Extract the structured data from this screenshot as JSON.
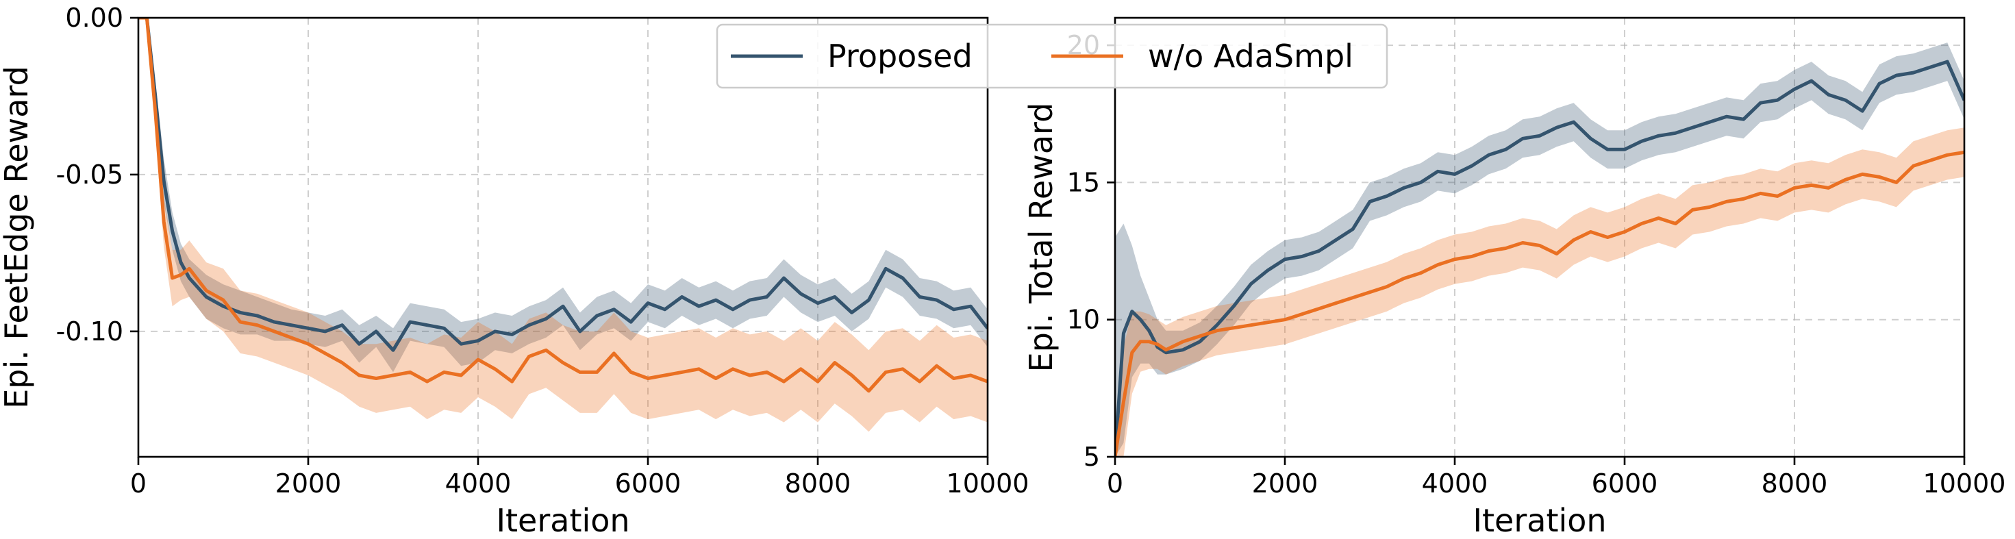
{
  "legend": {
    "entries": [
      {
        "name": "Proposed",
        "color": "#34546e"
      },
      {
        "name": "w/o AdaSmpl",
        "color": "#ea7022"
      }
    ]
  },
  "chart_data": [
    {
      "type": "line",
      "xlabel": "Iteration",
      "ylabel": "Epi. FeetEdge Reward",
      "xlim": [
        0,
        10000
      ],
      "ylim": [
        -0.14,
        0.0
      ],
      "xticks": [
        0,
        2000,
        4000,
        6000,
        8000,
        10000
      ],
      "yticks": [
        0.0,
        -0.05,
        -0.1
      ],
      "ytick_labels": [
        "0.00",
        "-0.05",
        "-0.10"
      ],
      "grid": true,
      "series": [
        {
          "name": "Proposed",
          "color": "#34546e",
          "x": [
            0,
            100,
            200,
            300,
            400,
            500,
            600,
            800,
            1000,
            1200,
            1400,
            1600,
            1800,
            2000,
            2200,
            2400,
            2600,
            2800,
            3000,
            3200,
            3400,
            3600,
            3800,
            4000,
            4200,
            4400,
            4600,
            4800,
            5000,
            5200,
            5400,
            5600,
            5800,
            6000,
            6200,
            6400,
            6600,
            6800,
            7000,
            7200,
            7400,
            7600,
            7800,
            8000,
            8200,
            8400,
            8600,
            8800,
            9000,
            9200,
            9400,
            9600,
            9800,
            10000
          ],
          "y": [
            0.0,
            0.0,
            -0.025,
            -0.052,
            -0.068,
            -0.078,
            -0.083,
            -0.089,
            -0.092,
            -0.094,
            -0.095,
            -0.097,
            -0.098,
            -0.099,
            -0.1,
            -0.098,
            -0.104,
            -0.1,
            -0.106,
            -0.097,
            -0.098,
            -0.099,
            -0.104,
            -0.103,
            -0.1,
            -0.101,
            -0.098,
            -0.096,
            -0.092,
            -0.1,
            -0.095,
            -0.093,
            -0.097,
            -0.091,
            -0.093,
            -0.089,
            -0.092,
            -0.09,
            -0.093,
            -0.09,
            -0.089,
            -0.083,
            -0.088,
            -0.091,
            -0.089,
            -0.094,
            -0.09,
            -0.08,
            -0.083,
            -0.089,
            -0.09,
            -0.093,
            -0.092,
            -0.099
          ],
          "upper": [
            0.0,
            0.0,
            -0.02,
            -0.045,
            -0.062,
            -0.072,
            -0.077,
            -0.082,
            -0.085,
            -0.087,
            -0.089,
            -0.091,
            -0.093,
            -0.094,
            -0.095,
            -0.093,
            -0.098,
            -0.095,
            -0.099,
            -0.091,
            -0.092,
            -0.093,
            -0.097,
            -0.096,
            -0.094,
            -0.095,
            -0.092,
            -0.09,
            -0.086,
            -0.094,
            -0.089,
            -0.087,
            -0.091,
            -0.085,
            -0.087,
            -0.083,
            -0.086,
            -0.084,
            -0.087,
            -0.084,
            -0.083,
            -0.077,
            -0.082,
            -0.085,
            -0.083,
            -0.088,
            -0.084,
            -0.074,
            -0.077,
            -0.083,
            -0.084,
            -0.087,
            -0.086,
            -0.093
          ],
          "lower": [
            0.0,
            0.0,
            -0.03,
            -0.059,
            -0.074,
            -0.084,
            -0.089,
            -0.096,
            -0.099,
            -0.101,
            -0.101,
            -0.103,
            -0.103,
            -0.104,
            -0.105,
            -0.103,
            -0.11,
            -0.105,
            -0.113,
            -0.103,
            -0.104,
            -0.105,
            -0.111,
            -0.11,
            -0.106,
            -0.107,
            -0.104,
            -0.102,
            -0.098,
            -0.106,
            -0.101,
            -0.099,
            -0.103,
            -0.097,
            -0.099,
            -0.095,
            -0.098,
            -0.096,
            -0.099,
            -0.096,
            -0.095,
            -0.089,
            -0.094,
            -0.097,
            -0.095,
            -0.1,
            -0.096,
            -0.086,
            -0.089,
            -0.095,
            -0.096,
            -0.099,
            -0.098,
            -0.105
          ]
        },
        {
          "name": "w/o AdaSmpl",
          "color": "#ea7022",
          "x": [
            0,
            100,
            200,
            300,
            400,
            500,
            600,
            800,
            1000,
            1200,
            1400,
            1600,
            1800,
            2000,
            2200,
            2400,
            2600,
            2800,
            3000,
            3200,
            3400,
            3600,
            3800,
            4000,
            4200,
            4400,
            4600,
            4800,
            5000,
            5200,
            5400,
            5600,
            5800,
            6000,
            6200,
            6400,
            6600,
            6800,
            7000,
            7200,
            7400,
            7600,
            7800,
            8000,
            8200,
            8400,
            8600,
            8800,
            9000,
            9200,
            9400,
            9600,
            9800,
            10000
          ],
          "y": [
            0.0,
            0.0,
            -0.03,
            -0.065,
            -0.083,
            -0.082,
            -0.08,
            -0.087,
            -0.09,
            -0.097,
            -0.098,
            -0.1,
            -0.102,
            -0.104,
            -0.107,
            -0.11,
            -0.114,
            -0.115,
            -0.114,
            -0.113,
            -0.116,
            -0.113,
            -0.114,
            -0.109,
            -0.112,
            -0.116,
            -0.108,
            -0.106,
            -0.11,
            -0.113,
            -0.113,
            -0.107,
            -0.113,
            -0.115,
            -0.114,
            -0.113,
            -0.112,
            -0.115,
            -0.112,
            -0.114,
            -0.113,
            -0.116,
            -0.112,
            -0.116,
            -0.11,
            -0.114,
            -0.119,
            -0.113,
            -0.112,
            -0.116,
            -0.111,
            -0.115,
            -0.114,
            -0.116
          ],
          "upper": [
            0.0,
            0.0,
            -0.024,
            -0.057,
            -0.074,
            -0.074,
            -0.071,
            -0.078,
            -0.08,
            -0.087,
            -0.088,
            -0.09,
            -0.092,
            -0.094,
            -0.097,
            -0.1,
            -0.104,
            -0.104,
            -0.103,
            -0.102,
            -0.104,
            -0.101,
            -0.102,
            -0.097,
            -0.1,
            -0.104,
            -0.096,
            -0.094,
            -0.098,
            -0.1,
            -0.1,
            -0.094,
            -0.1,
            -0.102,
            -0.101,
            -0.1,
            -0.099,
            -0.102,
            -0.099,
            -0.101,
            -0.1,
            -0.103,
            -0.099,
            -0.103,
            -0.097,
            -0.101,
            -0.106,
            -0.1,
            -0.099,
            -0.103,
            -0.098,
            -0.102,
            -0.101,
            -0.103
          ],
          "lower": [
            0.0,
            0.0,
            -0.036,
            -0.073,
            -0.092,
            -0.09,
            -0.089,
            -0.096,
            -0.1,
            -0.107,
            -0.108,
            -0.11,
            -0.112,
            -0.114,
            -0.117,
            -0.12,
            -0.124,
            -0.126,
            -0.125,
            -0.124,
            -0.128,
            -0.125,
            -0.126,
            -0.121,
            -0.124,
            -0.128,
            -0.12,
            -0.118,
            -0.122,
            -0.126,
            -0.126,
            -0.12,
            -0.126,
            -0.128,
            -0.127,
            -0.126,
            -0.125,
            -0.128,
            -0.125,
            -0.127,
            -0.126,
            -0.129,
            -0.125,
            -0.129,
            -0.123,
            -0.127,
            -0.132,
            -0.126,
            -0.125,
            -0.129,
            -0.124,
            -0.128,
            -0.127,
            -0.129
          ]
        }
      ]
    },
    {
      "type": "line",
      "xlabel": "Iteration",
      "ylabel": "Epi. Total Reward",
      "xlim": [
        0,
        10000
      ],
      "ylim": [
        5,
        21
      ],
      "xticks": [
        0,
        2000,
        4000,
        6000,
        8000,
        10000
      ],
      "yticks": [
        5,
        10,
        15,
        20
      ],
      "ytick_labels": [
        "5",
        "10",
        "15",
        "20"
      ],
      "grid": true,
      "series": [
        {
          "name": "Proposed",
          "color": "#34546e",
          "x": [
            0,
            100,
            200,
            300,
            400,
            500,
            600,
            800,
            1000,
            1200,
            1400,
            1600,
            1800,
            2000,
            2200,
            2400,
            2600,
            2800,
            3000,
            3200,
            3400,
            3600,
            3800,
            4000,
            4200,
            4400,
            4600,
            4800,
            5000,
            5200,
            5400,
            5600,
            5800,
            6000,
            6200,
            6400,
            6600,
            6800,
            7000,
            7200,
            7400,
            7600,
            7800,
            8000,
            8200,
            8400,
            8600,
            8800,
            9000,
            9200,
            9400,
            9600,
            9800,
            10000
          ],
          "y": [
            5.0,
            9.5,
            10.3,
            10.0,
            9.6,
            9.0,
            8.8,
            8.9,
            9.2,
            9.8,
            10.5,
            11.3,
            11.8,
            12.2,
            12.3,
            12.5,
            12.9,
            13.3,
            14.3,
            14.5,
            14.8,
            15.0,
            15.4,
            15.3,
            15.6,
            16.0,
            16.2,
            16.6,
            16.7,
            17.0,
            17.2,
            16.6,
            16.2,
            16.2,
            16.5,
            16.7,
            16.8,
            17.0,
            17.2,
            17.4,
            17.3,
            17.9,
            18.0,
            18.4,
            18.7,
            18.2,
            18.0,
            17.6,
            18.6,
            18.9,
            19.0,
            19.2,
            19.4,
            18.0
          ],
          "upper": [
            13.0,
            13.5,
            12.7,
            11.6,
            10.8,
            10.0,
            9.6,
            9.6,
            9.9,
            10.5,
            11.2,
            12.0,
            12.5,
            12.9,
            13.0,
            13.2,
            13.6,
            14.0,
            15.0,
            15.2,
            15.5,
            15.7,
            16.1,
            16.0,
            16.3,
            16.7,
            16.9,
            17.3,
            17.4,
            17.7,
            17.9,
            17.3,
            16.9,
            16.9,
            17.2,
            17.4,
            17.5,
            17.7,
            17.9,
            18.1,
            18.0,
            18.6,
            18.7,
            19.1,
            19.4,
            18.9,
            18.7,
            18.3,
            19.3,
            19.6,
            19.7,
            19.9,
            20.1,
            18.7
          ],
          "lower": [
            5.0,
            5.5,
            7.9,
            8.4,
            8.4,
            8.0,
            8.0,
            8.2,
            8.5,
            9.1,
            9.8,
            10.6,
            11.1,
            11.5,
            11.6,
            11.8,
            12.2,
            12.6,
            13.6,
            13.8,
            14.1,
            14.3,
            14.7,
            14.6,
            14.9,
            15.3,
            15.5,
            15.9,
            16.0,
            16.3,
            16.5,
            15.9,
            15.5,
            15.5,
            15.8,
            16.0,
            16.1,
            16.3,
            16.5,
            16.7,
            16.6,
            17.2,
            17.3,
            17.7,
            18.0,
            17.5,
            17.3,
            16.9,
            17.9,
            18.2,
            18.3,
            18.5,
            18.7,
            17.3
          ]
        },
        {
          "name": "w/o AdaSmpl",
          "color": "#ea7022",
          "x": [
            0,
            100,
            200,
            300,
            400,
            500,
            600,
            800,
            1000,
            1200,
            1400,
            1600,
            1800,
            2000,
            2200,
            2400,
            2600,
            2800,
            3000,
            3200,
            3400,
            3600,
            3800,
            4000,
            4200,
            4400,
            4600,
            4800,
            5000,
            5200,
            5400,
            5600,
            5800,
            6000,
            6200,
            6400,
            6600,
            6800,
            7000,
            7200,
            7400,
            7600,
            7800,
            8000,
            8200,
            8400,
            8600,
            8800,
            9000,
            9200,
            9400,
            9600,
            9800,
            10000
          ],
          "y": [
            5.0,
            7.0,
            8.8,
            9.2,
            9.2,
            9.1,
            8.9,
            9.2,
            9.4,
            9.6,
            9.7,
            9.8,
            9.9,
            10.0,
            10.2,
            10.4,
            10.6,
            10.8,
            11.0,
            11.2,
            11.5,
            11.7,
            12.0,
            12.2,
            12.3,
            12.5,
            12.6,
            12.8,
            12.7,
            12.4,
            12.9,
            13.2,
            13.0,
            13.2,
            13.5,
            13.7,
            13.5,
            14.0,
            14.1,
            14.3,
            14.4,
            14.6,
            14.5,
            14.8,
            14.9,
            14.8,
            15.1,
            15.3,
            15.2,
            15.0,
            15.6,
            15.8,
            16.0,
            16.1
          ],
          "upper": [
            5.5,
            9.0,
            10.3,
            10.3,
            10.2,
            10.0,
            9.8,
            10.1,
            10.3,
            10.5,
            10.6,
            10.7,
            10.8,
            10.9,
            11.1,
            11.3,
            11.5,
            11.7,
            11.9,
            12.1,
            12.4,
            12.6,
            12.9,
            13.1,
            13.2,
            13.4,
            13.5,
            13.7,
            13.6,
            13.3,
            13.8,
            14.1,
            13.9,
            14.1,
            14.4,
            14.6,
            14.4,
            14.9,
            15.0,
            15.2,
            15.3,
            15.5,
            15.4,
            15.7,
            15.8,
            15.7,
            16.0,
            16.2,
            16.1,
            15.9,
            16.5,
            16.7,
            16.9,
            17.0
          ],
          "lower": [
            5.0,
            5.0,
            7.3,
            8.1,
            8.2,
            8.2,
            8.0,
            8.3,
            8.5,
            8.7,
            8.8,
            8.9,
            9.0,
            9.1,
            9.3,
            9.5,
            9.7,
            9.9,
            10.1,
            10.3,
            10.6,
            10.8,
            11.1,
            11.3,
            11.4,
            11.6,
            11.7,
            11.9,
            11.8,
            11.5,
            12.0,
            12.3,
            12.1,
            12.3,
            12.6,
            12.8,
            12.6,
            13.1,
            13.2,
            13.4,
            13.5,
            13.7,
            13.6,
            13.9,
            14.0,
            13.9,
            14.2,
            14.4,
            14.3,
            14.1,
            14.7,
            14.9,
            15.1,
            15.2
          ]
        }
      ]
    }
  ]
}
